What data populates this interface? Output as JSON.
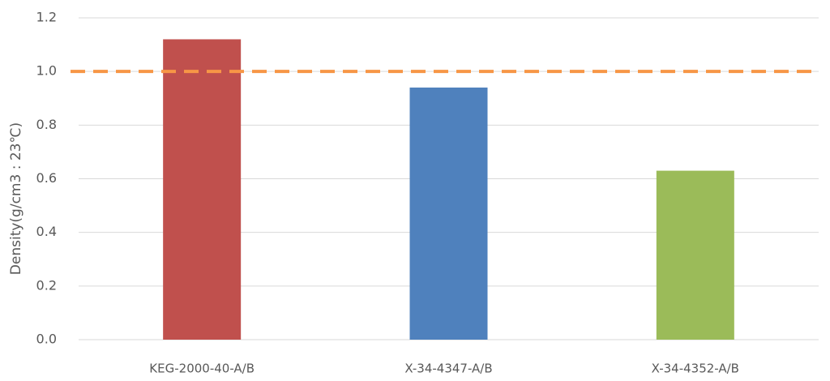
{
  "chart_data": {
    "type": "bar",
    "y_label": "Density(g/cm3 : 23℃)",
    "categories": [
      "KEG-2000-40-A/B",
      "X-34-4347-A/B",
      "X-34-4352-A/B"
    ],
    "values": [
      1.12,
      0.94,
      0.63
    ],
    "colors": [
      "#c0504d",
      "#4f81bd",
      "#9bbb59"
    ],
    "ylim": [
      0,
      1.2
    ],
    "yticks": [
      {
        "value": 0,
        "label": "0.0"
      },
      0.2,
      0.4,
      0.6,
      0.8,
      {
        "value": 1,
        "label": "1.0"
      },
      1.2
    ],
    "grid": true,
    "reference_line": {
      "value": 1,
      "color": "#f79646"
    }
  }
}
